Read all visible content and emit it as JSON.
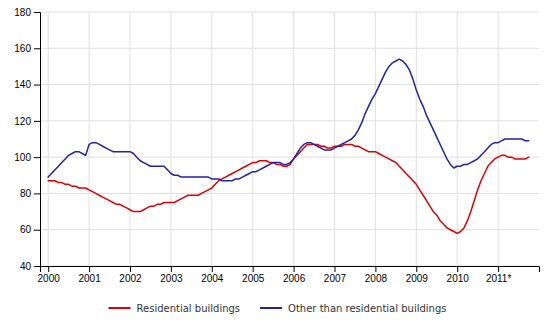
{
  "chart_data": {
    "type": "line",
    "x": [
      2000.0,
      2000.083,
      2000.167,
      2000.25,
      2000.333,
      2000.417,
      2000.5,
      2000.583,
      2000.667,
      2000.75,
      2000.833,
      2000.917,
      2001.0,
      2001.083,
      2001.167,
      2001.25,
      2001.333,
      2001.417,
      2001.5,
      2001.583,
      2001.667,
      2001.75,
      2001.833,
      2001.917,
      2002.0,
      2002.083,
      2002.167,
      2002.25,
      2002.333,
      2002.417,
      2002.5,
      2002.583,
      2002.667,
      2002.75,
      2002.833,
      2002.917,
      2003.0,
      2003.083,
      2003.167,
      2003.25,
      2003.333,
      2003.417,
      2003.5,
      2003.583,
      2003.667,
      2003.75,
      2003.833,
      2003.917,
      2004.0,
      2004.083,
      2004.167,
      2004.25,
      2004.333,
      2004.417,
      2004.5,
      2004.583,
      2004.667,
      2004.75,
      2004.833,
      2004.917,
      2005.0,
      2005.083,
      2005.167,
      2005.25,
      2005.333,
      2005.417,
      2005.5,
      2005.583,
      2005.667,
      2005.75,
      2005.833,
      2005.917,
      2006.0,
      2006.083,
      2006.167,
      2006.25,
      2006.333,
      2006.417,
      2006.5,
      2006.583,
      2006.667,
      2006.75,
      2006.833,
      2006.917,
      2007.0,
      2007.083,
      2007.167,
      2007.25,
      2007.333,
      2007.417,
      2007.5,
      2007.583,
      2007.667,
      2007.75,
      2007.833,
      2007.917,
      2008.0,
      2008.083,
      2008.167,
      2008.25,
      2008.333,
      2008.417,
      2008.5,
      2008.583,
      2008.667,
      2008.75,
      2008.833,
      2008.917,
      2009.0,
      2009.083,
      2009.167,
      2009.25,
      2009.333,
      2009.417,
      2009.5,
      2009.583,
      2009.667,
      2009.75,
      2009.833,
      2009.917,
      2010.0,
      2010.083,
      2010.167,
      2010.25,
      2010.333,
      2010.417,
      2010.5,
      2010.583,
      2010.667,
      2010.75,
      2010.833,
      2010.917,
      2011.0,
      2011.083,
      2011.167,
      2011.25,
      2011.333,
      2011.417,
      2011.5,
      2011.583,
      2011.667,
      2011.75
    ],
    "series": [
      {
        "name": "Residential buildings",
        "color": "#dd0000",
        "values": [
          87,
          87,
          87,
          86,
          86,
          85,
          85,
          84,
          84,
          83,
          83,
          83,
          82,
          81,
          80,
          79,
          78,
          77,
          76,
          75,
          74,
          74,
          73,
          72,
          71,
          70,
          70,
          70,
          71,
          72,
          73,
          73,
          74,
          74,
          75,
          75,
          75,
          75,
          76,
          77,
          78,
          79,
          79,
          79,
          79,
          80,
          81,
          82,
          83,
          85,
          87,
          88,
          89,
          90,
          91,
          92,
          93,
          94,
          95,
          96,
          97,
          97,
          98,
          98,
          98,
          97,
          97,
          96,
          96,
          95,
          95,
          96,
          99,
          101,
          103,
          105,
          107,
          107,
          107,
          107,
          106,
          106,
          105,
          105,
          106,
          106,
          106,
          107,
          107,
          107,
          106,
          106,
          105,
          104,
          103,
          103,
          103,
          102,
          101,
          100,
          99,
          98,
          97,
          95,
          93,
          91,
          89,
          87,
          85,
          82,
          79,
          76,
          73,
          70,
          68,
          65,
          63,
          61,
          60,
          59,
          58,
          59,
          61,
          65,
          70,
          76,
          82,
          87,
          91,
          95,
          97,
          99,
          100,
          101,
          101,
          100,
          100,
          99,
          99,
          99,
          99,
          100
        ]
      },
      {
        "name": "Other than residential buildings",
        "color": "#2222aa",
        "values": [
          89,
          91,
          93,
          95,
          97,
          99,
          101,
          102,
          103,
          103,
          102,
          101,
          107,
          108,
          108,
          107,
          106,
          105,
          104,
          103,
          103,
          103,
          103,
          103,
          103,
          102,
          100,
          98,
          97,
          96,
          95,
          95,
          95,
          95,
          95,
          93,
          91,
          90,
          90,
          89,
          89,
          89,
          89,
          89,
          89,
          89,
          89,
          89,
          88,
          88,
          88,
          87,
          87,
          87,
          87,
          88,
          88,
          89,
          90,
          91,
          92,
          92,
          93,
          94,
          95,
          96,
          97,
          97,
          97,
          96,
          96,
          97,
          99,
          102,
          105,
          107,
          108,
          108,
          107,
          106,
          105,
          104,
          104,
          104,
          105,
          106,
          107,
          108,
          109,
          110,
          112,
          115,
          119,
          124,
          128,
          132,
          135,
          139,
          143,
          147,
          150,
          152,
          153,
          154,
          153,
          151,
          148,
          143,
          137,
          132,
          128,
          123,
          119,
          115,
          111,
          107,
          103,
          99,
          96,
          94,
          95,
          95,
          96,
          96,
          97,
          98,
          99,
          101,
          103,
          105,
          107,
          108,
          108,
          109,
          110,
          110,
          110,
          110,
          110,
          110,
          109,
          109
        ]
      }
    ],
    "xlim": [
      1999.8,
      2012.0
    ],
    "xticks": [
      2000,
      2001,
      2002,
      2003,
      2004,
      2005,
      2006,
      2007,
      2008,
      2009,
      2010,
      {
        "value": 2011,
        "label": "2011*"
      }
    ],
    "ylim": [
      40,
      180
    ],
    "yticks": [
      40,
      60,
      80,
      100,
      120,
      140,
      160,
      180
    ],
    "grid": true,
    "legend": "bottom"
  }
}
